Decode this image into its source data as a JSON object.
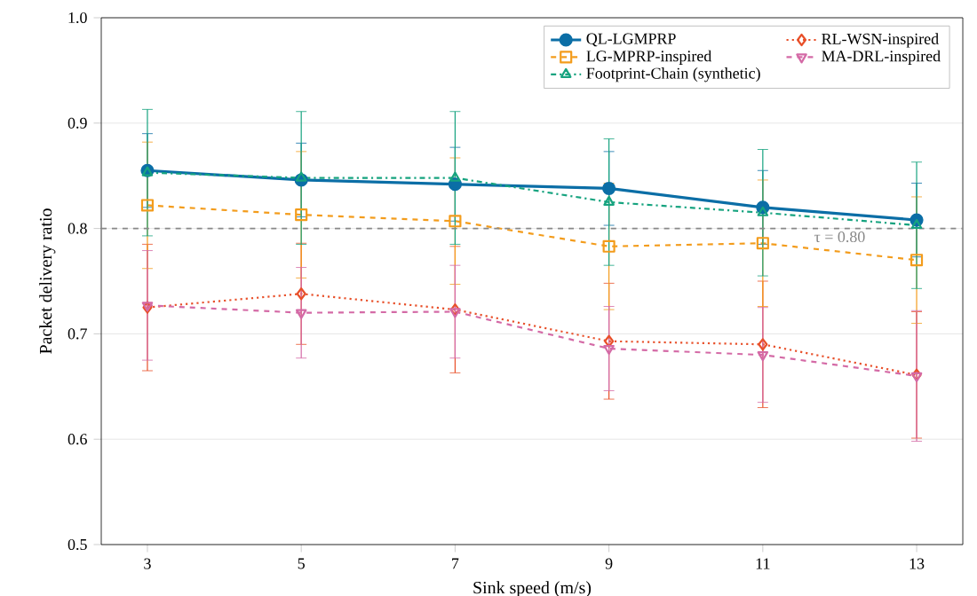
{
  "chart_data": {
    "type": "line",
    "xlabel": "Sink speed (m/s)",
    "ylabel": "Packet delivery ratio",
    "x": [
      3,
      5,
      7,
      9,
      11,
      13
    ],
    "xlim": [
      2.4,
      13.6
    ],
    "xticks": [
      3,
      5,
      7,
      9,
      11,
      13
    ],
    "ylim": [
      0.5,
      1.0
    ],
    "yticks": [
      {
        "value": 0.5,
        "label": "0.5"
      },
      {
        "value": 0.6,
        "label": "0.6"
      },
      {
        "value": 0.7,
        "label": "0.7"
      },
      {
        "value": 0.8,
        "label": "0.8"
      },
      {
        "value": 0.9,
        "label": "0.9"
      },
      {
        "value": 1.0,
        "label": "1.0"
      }
    ],
    "grid": "y",
    "legend": "top right",
    "series": [
      {
        "name": "QL-LGMPRP",
        "color": "#0b6ea6",
        "marker": "circle",
        "line_style": "solid",
        "values": [
          0.855,
          0.846,
          0.842,
          0.838,
          0.82,
          0.808
        ],
        "errors": [
          0.035,
          0.035,
          0.035,
          0.035,
          0.035,
          0.035
        ]
      },
      {
        "name": "LG-MPRP-inspired",
        "color": "#f39c1c",
        "marker": "square",
        "line_style": "dashed",
        "values": [
          0.822,
          0.813,
          0.807,
          0.783,
          0.786,
          0.77
        ],
        "errors": [
          0.06,
          0.06,
          0.06,
          0.06,
          0.06,
          0.06
        ]
      },
      {
        "name": "Footprint-Chain (synthetic)",
        "color": "#16a37f",
        "marker": "triangle",
        "line_style": "dashdot",
        "values": [
          0.853,
          0.848,
          0.848,
          0.825,
          0.815,
          0.803
        ],
        "errors": [
          0.06,
          0.063,
          0.063,
          0.06,
          0.06,
          0.06
        ]
      },
      {
        "name": "RL-WSN-inspired",
        "color": "#e8502a",
        "marker": "diamond",
        "line_style": "dotted",
        "values": [
          0.725,
          0.738,
          0.723,
          0.693,
          0.69,
          0.661
        ],
        "errors": [
          0.06,
          0.048,
          0.06,
          0.055,
          0.06,
          0.06
        ]
      },
      {
        "name": "MA-DRL-inspired",
        "color": "#d46aa6",
        "marker": "triangle_down",
        "line_style": "dashed",
        "values": [
          0.727,
          0.72,
          0.721,
          0.686,
          0.68,
          0.66
        ],
        "errors": [
          0.052,
          0.043,
          0.044,
          0.04,
          0.045,
          0.062
        ]
      }
    ],
    "ref_lines": [
      {
        "axis": "y",
        "value": 0.8,
        "label": "τ = 0.80",
        "color": "#888888",
        "line_style": "dashed"
      }
    ]
  }
}
